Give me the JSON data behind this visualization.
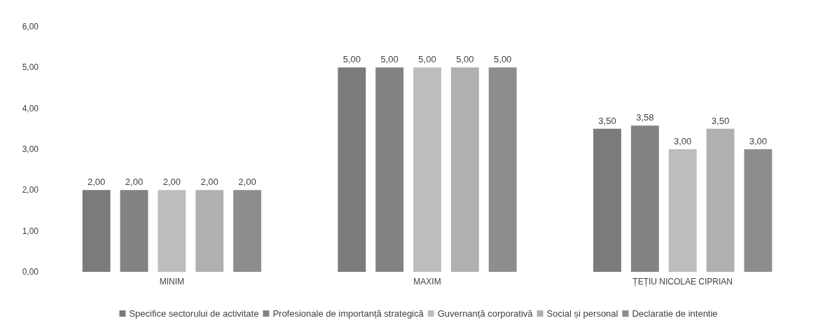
{
  "chart_data": {
    "type": "bar",
    "categories": [
      "MINIM",
      "MAXIM",
      "ȚEȚIU NICOLAE CIPRIAN"
    ],
    "series": [
      {
        "name": "Specifice sectorului de activitate",
        "color": "#7b7b7b",
        "values": [
          2,
          5,
          3.5
        ],
        "value_labels": [
          "2,00",
          "5,00",
          "3,50"
        ]
      },
      {
        "name": "Profesionale de importanță strategică",
        "color": "#838383",
        "values": [
          2,
          5,
          3.58
        ],
        "value_labels": [
          "2,00",
          "5,00",
          "3,58"
        ]
      },
      {
        "name": "Guvernanță corporativă",
        "color": "#bdbdbd",
        "values": [
          2,
          5,
          3
        ],
        "value_labels": [
          "2,00",
          "5,00",
          "3,00"
        ]
      },
      {
        "name": "Social și personal",
        "color": "#b0b0b0",
        "values": [
          2,
          5,
          3.5
        ],
        "value_labels": [
          "2,00",
          "5,00",
          "3,50"
        ]
      },
      {
        "name": "Declaratie de intentie",
        "color": "#8d8d8d",
        "values": [
          2,
          5,
          3
        ],
        "value_labels": [
          "2,00",
          "5,00",
          "3,00"
        ]
      }
    ],
    "ylim": [
      0,
      6
    ],
    "yticks": [
      {
        "value": 0,
        "label": "0,00"
      },
      {
        "value": 1,
        "label": "1,00"
      },
      {
        "value": 2,
        "label": "2,00"
      },
      {
        "value": 3,
        "label": "3,00"
      },
      {
        "value": 4,
        "label": "4,00"
      },
      {
        "value": 5,
        "label": "5,00"
      },
      {
        "value": 6,
        "label": "6,00"
      }
    ],
    "grid": false,
    "legend": "bottom"
  }
}
